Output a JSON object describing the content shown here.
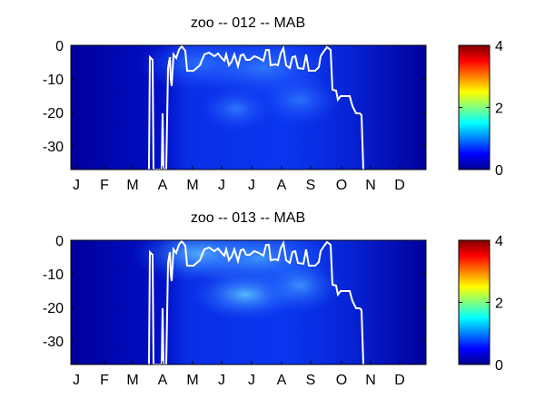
{
  "chart_data": [
    {
      "type": "heatmap",
      "title": "zoo -- 012 -- MAB",
      "x_tick_labels": [
        "J",
        "F",
        "M",
        "A",
        "M",
        "J",
        "J",
        "A",
        "S",
        "O",
        "N",
        "D"
      ],
      "y_ticks": [
        0,
        -10,
        -20,
        -30
      ],
      "ylim": [
        -37,
        0
      ],
      "colorbar": {
        "ticks": [
          0,
          2,
          4
        ],
        "range": [
          0,
          4
        ],
        "colormap": "jet"
      },
      "mld_line_color": "#ffffff"
    },
    {
      "type": "heatmap",
      "title": "zoo -- 013 -- MAB",
      "x_tick_labels": [
        "J",
        "F",
        "M",
        "A",
        "M",
        "J",
        "J",
        "A",
        "S",
        "O",
        "N",
        "D"
      ],
      "y_ticks": [
        0,
        -10,
        -20,
        -30
      ],
      "ylim": [
        -37,
        0
      ],
      "colorbar": {
        "ticks": [
          0,
          2,
          4
        ],
        "range": [
          0,
          4
        ],
        "colormap": "jet"
      },
      "mld_line_color": "#ffffff"
    }
  ]
}
